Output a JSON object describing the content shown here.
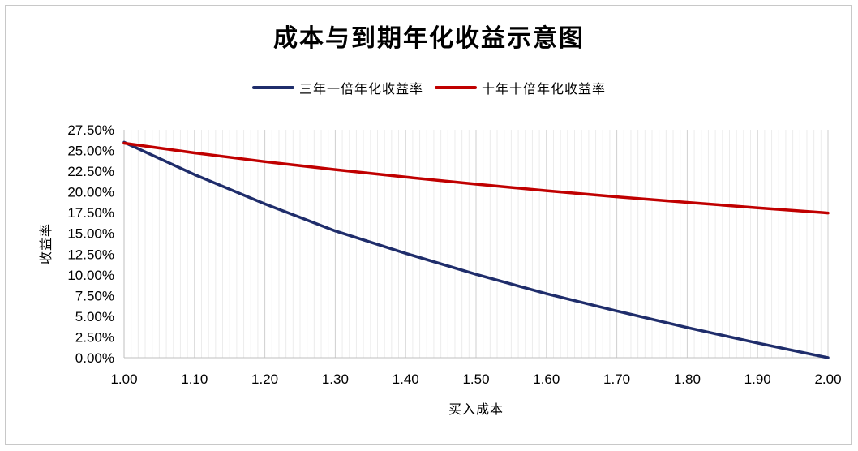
{
  "chart_data": {
    "type": "line",
    "title": "成本与到期年化收益示意图",
    "xlabel": "买入成本",
    "ylabel": "收益率",
    "x": [
      1.0,
      1.1,
      1.2,
      1.3,
      1.4,
      1.5,
      1.6,
      1.7,
      1.8,
      1.9,
      2.0
    ],
    "x_tick_labels": [
      "1.00",
      "1.10",
      "1.20",
      "1.30",
      "1.40",
      "1.50",
      "1.60",
      "1.70",
      "1.80",
      "1.90",
      "2.00"
    ],
    "y_tick_labels": [
      "0.00%",
      "2.50%",
      "5.00%",
      "7.50%",
      "10.00%",
      "12.50%",
      "15.00%",
      "17.50%",
      "20.00%",
      "22.50%",
      "25.00%",
      "27.50%"
    ],
    "xlim": [
      1.0,
      2.0
    ],
    "ylim": [
      0,
      27.5
    ],
    "y_unit": "%",
    "grid": "vertical major and minor gridlines",
    "legend_position": "top",
    "series": [
      {
        "name": "三年一倍年化收益率",
        "color": "#1f2d6b",
        "values": [
          25.99,
          22.1,
          18.56,
          15.3,
          12.6,
          10.06,
          7.72,
          5.64,
          3.64,
          1.77,
          0.0
        ]
      },
      {
        "name": "十年十倍年化收益率",
        "color": "#c00000",
        "values": [
          25.89,
          24.71,
          23.65,
          22.69,
          21.79,
          20.94,
          20.15,
          19.42,
          18.74,
          18.09,
          17.46
        ]
      }
    ]
  }
}
